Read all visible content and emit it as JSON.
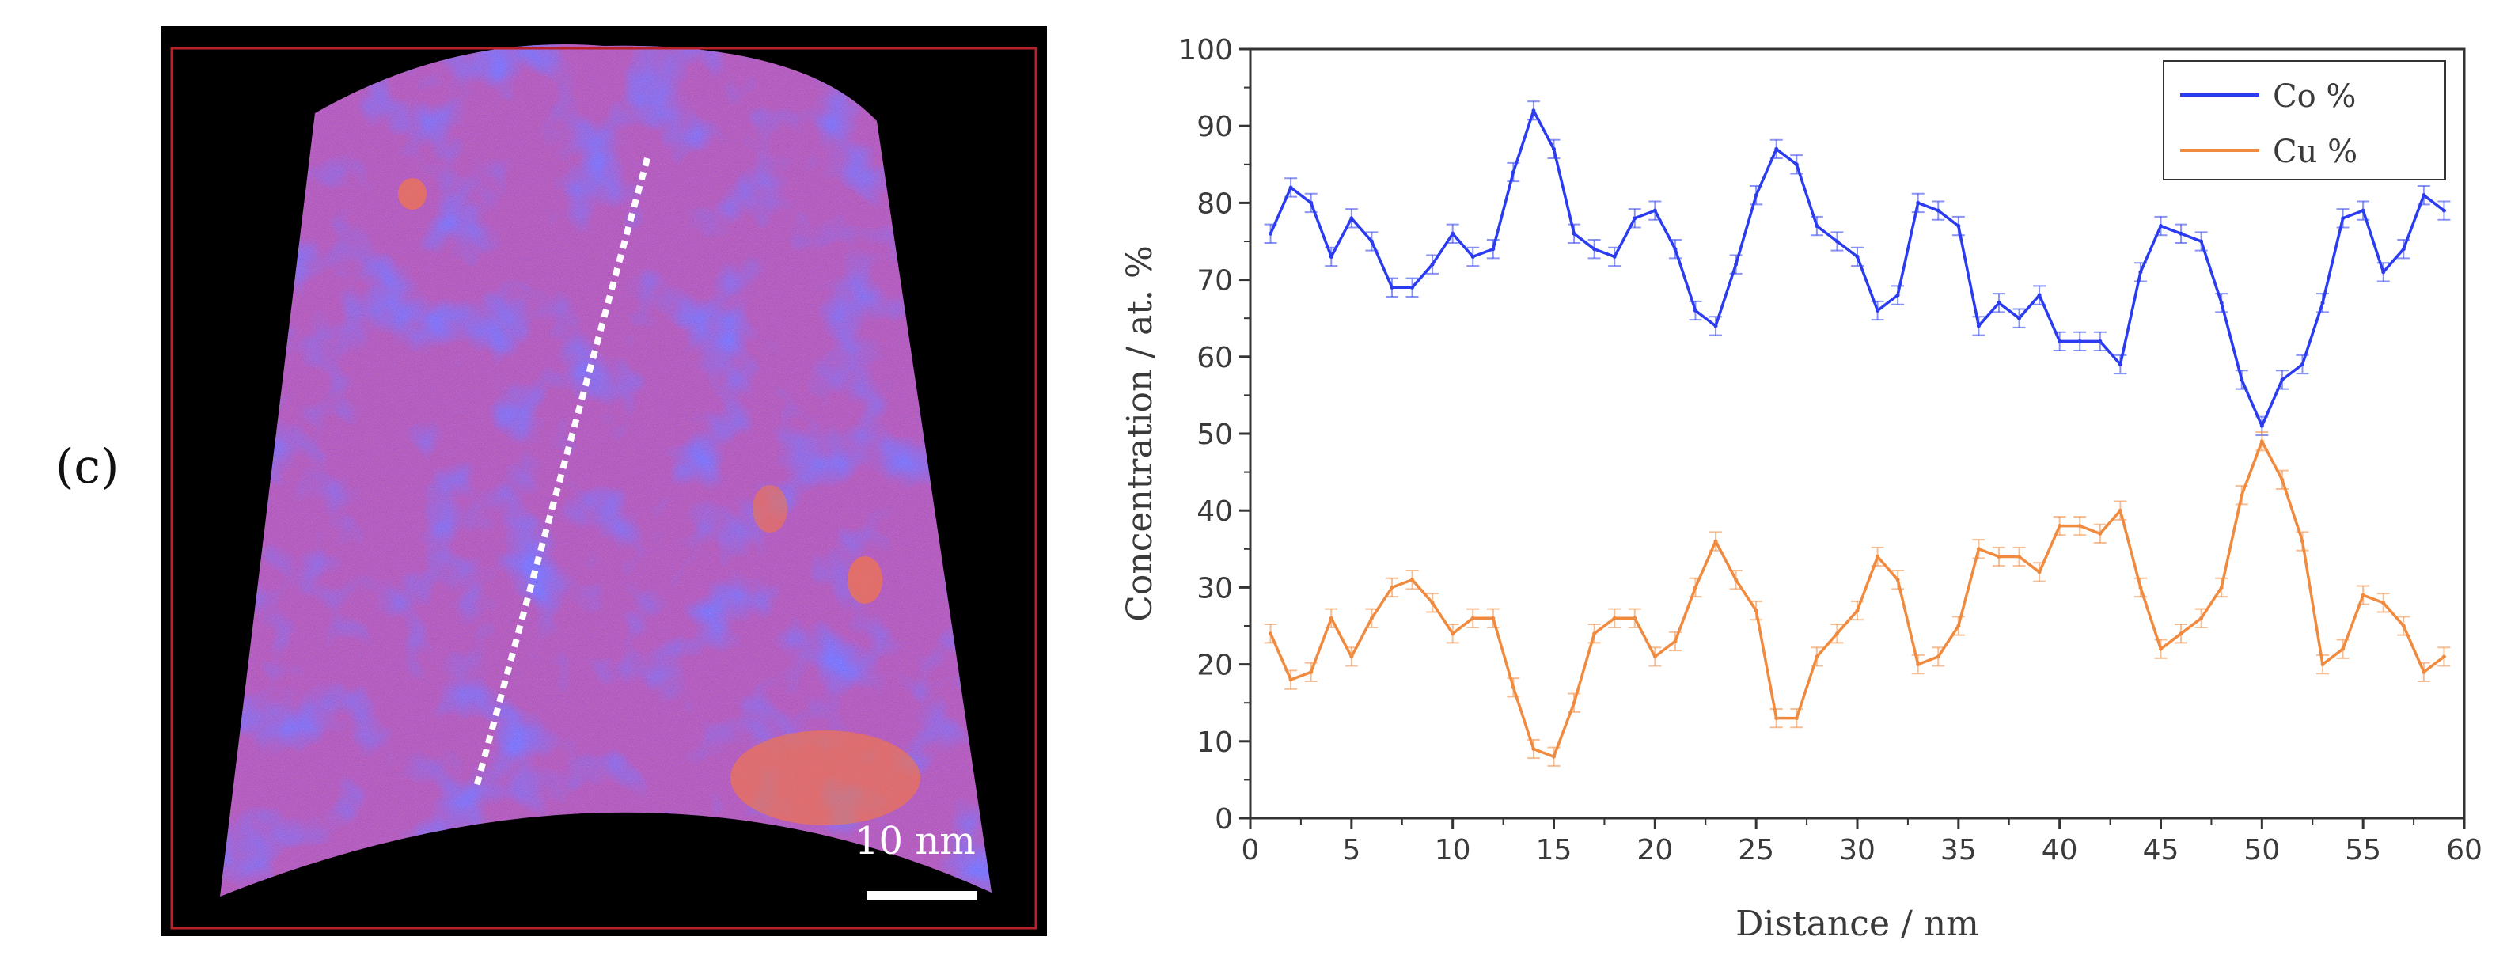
{
  "panel_label": "(c)",
  "scale_bar_label": "10 nm",
  "chart_data": {
    "type": "line",
    "title": "",
    "xlabel": "Distance / nm",
    "ylabel": "Concentration / at. %",
    "xlim": [
      0,
      60
    ],
    "ylim": [
      0,
      100
    ],
    "xticks": [
      0,
      5,
      10,
      15,
      20,
      25,
      30,
      35,
      40,
      45,
      50,
      55,
      60
    ],
    "yticks": [
      0,
      10,
      20,
      30,
      40,
      50,
      60,
      70,
      80,
      90,
      100
    ],
    "legend_position": "top-right",
    "series": [
      {
        "name": "Co %",
        "color": "#2a3bf0",
        "x": [
          1,
          2,
          3,
          4,
          5,
          6,
          7,
          8,
          9,
          10,
          11,
          12,
          13,
          14,
          15,
          16,
          17,
          18,
          19,
          20,
          21,
          22,
          23,
          24,
          25,
          26,
          27,
          28,
          29,
          30,
          31,
          32,
          33,
          34,
          35,
          36,
          37,
          38,
          39,
          40,
          41,
          42,
          43,
          44,
          45,
          46,
          47,
          48,
          49,
          50,
          51,
          52,
          53,
          54,
          55,
          56,
          57,
          58,
          59
        ],
        "values": [
          76,
          82,
          80,
          73,
          78,
          75,
          69,
          69,
          72,
          76,
          73,
          74,
          84,
          92,
          87,
          76,
          74,
          73,
          78,
          79,
          74,
          66,
          64,
          72,
          81,
          87,
          85,
          77,
          75,
          73,
          66,
          68,
          80,
          79,
          77,
          64,
          67,
          65,
          68,
          62,
          62,
          62,
          59,
          71,
          77,
          76,
          75,
          67,
          57,
          51,
          57,
          59,
          67,
          78,
          79,
          71,
          74,
          81,
          79
        ]
      },
      {
        "name": "Cu %",
        "color": "#f08a3e",
        "x": [
          1,
          2,
          3,
          4,
          5,
          6,
          7,
          8,
          9,
          10,
          11,
          12,
          13,
          14,
          15,
          16,
          17,
          18,
          19,
          20,
          21,
          22,
          23,
          24,
          25,
          26,
          27,
          28,
          29,
          30,
          31,
          32,
          33,
          34,
          35,
          36,
          37,
          38,
          39,
          40,
          41,
          42,
          43,
          44,
          45,
          46,
          47,
          48,
          49,
          50,
          51,
          52,
          53,
          54,
          55,
          56,
          57,
          58,
          59
        ],
        "values": [
          24,
          18,
          19,
          26,
          21,
          26,
          30,
          31,
          28,
          24,
          26,
          26,
          17,
          9,
          8,
          15,
          24,
          26,
          26,
          21,
          23,
          30,
          36,
          31,
          27,
          13,
          13,
          21,
          24,
          27,
          34,
          31,
          20,
          21,
          25,
          35,
          34,
          34,
          32,
          38,
          38,
          37,
          40,
          30,
          22,
          24,
          26,
          30,
          42,
          49,
          44,
          36,
          20,
          22,
          29,
          28,
          25,
          19,
          21
        ]
      }
    ]
  }
}
